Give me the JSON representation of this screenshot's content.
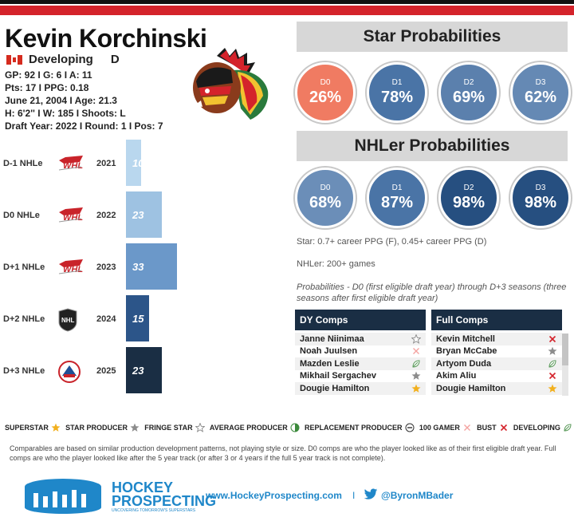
{
  "player": {
    "name": "Kevin Korchinski",
    "status": "Developing",
    "position": "D",
    "line1": "GP: 92 I G: 6 I A: 11",
    "line2": "Pts: 17 I PPG: 0.18",
    "line3": "June 21, 2004 I Age: 21.3",
    "line4": "H: 6'2'' I W: 185 I Shoots: L",
    "line5": "Draft Year: 2022 I Round: 1 I Pos: 7"
  },
  "star_probabilities": {
    "title": "Star Probabilities",
    "items": [
      {
        "label": "D0",
        "value": "26%",
        "color": "#f07b62"
      },
      {
        "label": "D1",
        "value": "78%",
        "color": "#4a74a6"
      },
      {
        "label": "D2",
        "value": "69%",
        "color": "#5b80ad"
      },
      {
        "label": "D3",
        "value": "62%",
        "color": "#6589b4"
      }
    ]
  },
  "nhler_probabilities": {
    "title": "NHLer Probabilities",
    "items": [
      {
        "label": "D0",
        "value": "68%",
        "color": "#6b8eb8"
      },
      {
        "label": "D1",
        "value": "87%",
        "color": "#4a74a6"
      },
      {
        "label": "D2",
        "value": "98%",
        "color": "#264f80"
      },
      {
        "label": "D3",
        "value": "98%",
        "color": "#264f80"
      }
    ]
  },
  "notes": {
    "star_def": "Star: 0.7+ career PPG (F), 0.45+ career PPG (D)",
    "nhler_def": "NHLer: 200+ games",
    "prob_def": "Probabilities - D0 (first eligible draft year) through D+3 seasons (three seasons after first eligible draft year)"
  },
  "dy_comps": {
    "title": "DY Comps",
    "rows": [
      {
        "name": "Janne Niinimaa",
        "icon": "fringe-star-icon"
      },
      {
        "name": "Noah Juulsen",
        "icon": "100-gamer-icon"
      },
      {
        "name": "Mazden Leslie",
        "icon": "developing-icon"
      },
      {
        "name": "Mikhail Sergachev",
        "icon": "star-producer-icon"
      },
      {
        "name": "Dougie Hamilton",
        "icon": "superstar-icon"
      }
    ]
  },
  "full_comps": {
    "title": "Full Comps",
    "rows": [
      {
        "name": "Kevin Mitchell",
        "icon": "bust-icon"
      },
      {
        "name": "Bryan McCabe",
        "icon": "star-producer-icon"
      },
      {
        "name": "Artyom Duda",
        "icon": "developing-icon"
      },
      {
        "name": "Akim Aliu",
        "icon": "bust-icon"
      },
      {
        "name": "Dougie Hamilton",
        "icon": "superstar-icon"
      }
    ]
  },
  "nhle": {
    "rows": [
      {
        "label": "D-1 NHLe",
        "league": "whl-logo-icon",
        "year": "2021",
        "value": 10,
        "color": "#b9d7ee"
      },
      {
        "label": "D0 NHLe",
        "league": "whl-logo-icon",
        "year": "2022",
        "value": 23,
        "color": "#9ec2e2"
      },
      {
        "label": "D+1 NHLe",
        "league": "whl-logo-icon",
        "year": "2023",
        "value": 33,
        "color": "#6b98c9"
      },
      {
        "label": "D+2 NHLe",
        "league": "nhl-logo-icon",
        "year": "2024",
        "value": 15,
        "color": "#2c5589"
      },
      {
        "label": "D+3 NHLe",
        "league": "ahl-logo-icon",
        "year": "2025",
        "value": 23,
        "color": "#1a2e44"
      }
    ],
    "max": 33
  },
  "legend": [
    {
      "label": "SUPERSTAR",
      "icon": "superstar-icon"
    },
    {
      "label": "STAR PRODUCER",
      "icon": "star-producer-icon"
    },
    {
      "label": "FRINGE STAR",
      "icon": "fringe-star-icon"
    },
    {
      "label": "AVERAGE PRODUCER",
      "icon": "average-producer-icon"
    },
    {
      "label": "REPLACEMENT PRODUCER",
      "icon": "replacement-producer-icon"
    },
    {
      "label": "100 GAMER",
      "icon": "100-gamer-icon"
    },
    {
      "label": "BUST",
      "icon": "bust-icon"
    },
    {
      "label": "DEVELOPING",
      "icon": "developing-icon"
    }
  ],
  "footnote": "Comparables are based on similar production development patterns, not playing style or size. D0 comps are who the player looked like as of their first eligible draft year. Full comps are who the player looked like after the 5 year track (or after 3 or 4 years if the full 5 year track is not complete).",
  "footer": {
    "brand_line1": "HOCKEY",
    "brand_line2": "PROSPECTING",
    "tagline": "UNCOVERING TOMORROW'S SUPERSTARS",
    "website": "www.HockeyProspecting.com",
    "separator": "I",
    "twitter": "@ByronMBader"
  }
}
